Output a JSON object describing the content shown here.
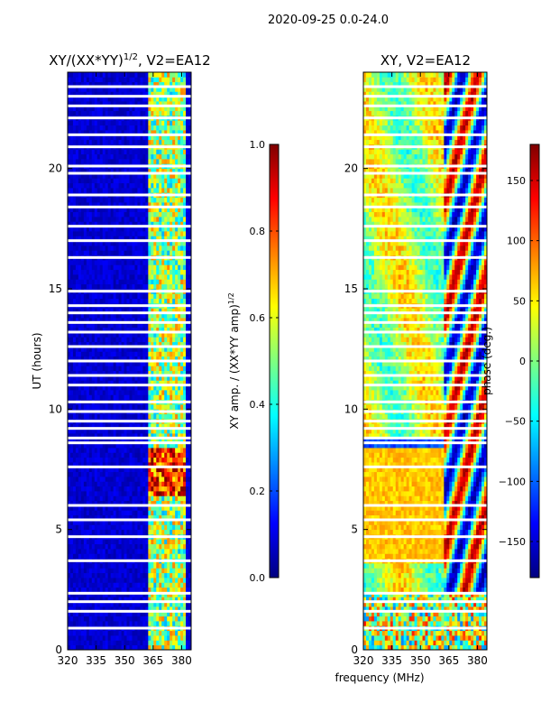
{
  "figure": {
    "suptitle": "2020-09-25 0.0-24.0",
    "xlabel_common": "frequency (MHz)"
  },
  "chart_data": [
    {
      "type": "heatmap",
      "id": "amp",
      "title_main": "XY/(XX*YY)",
      "title_sup": "1/2",
      "title_rest": ", V2=EA12",
      "ylabel": "UT (hours)",
      "xlim": [
        320,
        385
      ],
      "ylim": [
        0,
        24
      ],
      "xticks": [
        320,
        335,
        350,
        365,
        380
      ],
      "yticks": [
        0,
        5,
        10,
        15,
        20
      ],
      "colorbar": {
        "label_main": "XY amp. / (XX*YY amp)",
        "label_sup": "1/2",
        "range": [
          0.0,
          1.0
        ],
        "ticks": [
          "0.0",
          "0.2",
          "0.4",
          "0.6",
          "0.8",
          "1.0"
        ],
        "tick_values": [
          0.0,
          0.2,
          0.4,
          0.6,
          0.8,
          1.0
        ]
      },
      "bright_band_mhz": [
        362,
        382
      ],
      "flagged_hours": [
        0.9,
        1.6,
        2.0,
        2.35,
        3.7,
        4.7,
        5.4,
        6.0,
        7.6,
        8.6,
        8.8,
        9.2,
        9.5,
        9.9,
        10.3,
        11.0,
        11.4,
        12.0,
        12.6,
        13.2,
        13.6,
        14.0,
        14.3,
        14.9,
        16.3,
        17.0,
        17.6,
        18.4,
        18.9,
        19.8,
        20.1,
        20.9,
        21.4,
        22.1,
        22.6,
        23.0,
        23.4
      ]
    },
    {
      "type": "heatmap",
      "id": "phase",
      "title": "XY, V2=EA12",
      "xlim": [
        320,
        385
      ],
      "ylim": [
        0,
        24
      ],
      "xticks": [
        320,
        335,
        350,
        365,
        380
      ],
      "yticks": [
        0,
        5,
        10,
        15,
        20
      ],
      "colorbar": {
        "label": "phase (deg.)",
        "range": [
          -180,
          180
        ],
        "ticks": [
          "−150",
          "−100",
          "−50",
          "0",
          "50",
          "100",
          "150"
        ],
        "tick_values": [
          -150,
          -100,
          -50,
          0,
          50,
          100,
          150
        ]
      },
      "flagged_hours": [
        0.9,
        1.6,
        2.0,
        2.35,
        3.7,
        4.7,
        5.4,
        6.0,
        7.6,
        8.6,
        8.8,
        9.2,
        9.5,
        9.9,
        10.3,
        11.0,
        11.4,
        12.0,
        12.6,
        13.2,
        13.6,
        14.0,
        14.3,
        14.9,
        16.3,
        17.0,
        17.6,
        18.4,
        18.9,
        19.8,
        20.1,
        20.9,
        21.4,
        22.1,
        22.6,
        23.0,
        23.4
      ]
    }
  ],
  "colormap": [
    "#00007f",
    "#0000ff",
    "#007fff",
    "#00ffff",
    "#7fff7f",
    "#ffff00",
    "#ff7f00",
    "#ff0000",
    "#7f0000"
  ]
}
